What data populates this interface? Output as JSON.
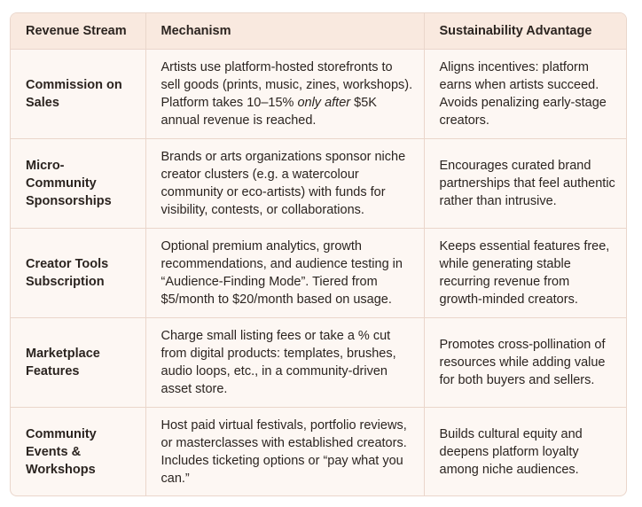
{
  "table": {
    "header": [
      "Revenue Stream",
      "Mechanism",
      "Sustainability Advantage"
    ],
    "rows": [
      [
        "Commission on Sales",
        [
          "Artists use platform-hosted storefronts to sell goods (prints, music, zines, workshops). Platform takes 10–15% ",
          {
            "em": "only after"
          },
          " $5K annual revenue is reached."
        ],
        "Aligns incentives: platform earns when artists succeed. Avoids penalizing early-stage creators."
      ],
      [
        "Micro-Community Sponsorships",
        "Brands or arts organizations sponsor niche creator clusters (e.g. a watercolour community or eco-artists) with funds for visibility, contests, or collaborations.",
        "Encourages curated brand partnerships that feel authentic rather than intrusive."
      ],
      [
        "Creator Tools Subscription",
        "Optional premium analytics, growth recommendations, and audience testing in “Audience-Finding Mode”. Tiered from $5/month to $20/month based on usage.",
        "Keeps essential features free, while generating stable recurring revenue from growth-minded creators."
      ],
      [
        "Marketplace Features",
        "Charge small listing fees or take a % cut from digital products: templates, brushes, audio loops, etc., in a community-driven asset store.",
        "Promotes cross-pollination of resources while adding value for both buyers and sellers."
      ],
      [
        "Community Events & Workshops",
        "Host paid virtual festivals, portfolio reviews, or masterclasses with established creators. Includes ticketing options or “pay what you can.”",
        "Builds cultural equity and deepens platform loyalty among niche audiences."
      ]
    ]
  }
}
